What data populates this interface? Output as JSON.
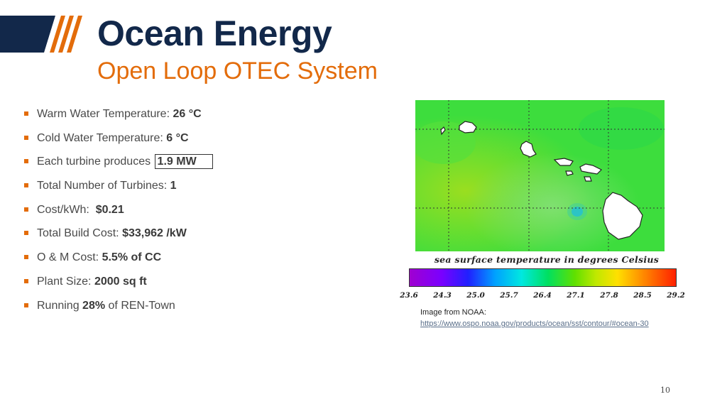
{
  "header": {
    "title": "Ocean Energy",
    "subtitle": "Open Loop OTEC System",
    "colors": {
      "navy": "#12284a",
      "orange": "#e36c0a"
    }
  },
  "bullets": [
    {
      "label": "Warm Water Temperature: ",
      "value": "26 °C"
    },
    {
      "label": "Cold Water Temperature: ",
      "value": "6 °C"
    },
    {
      "label": "Each turbine produces ",
      "value": "1.9 MW"
    },
    {
      "label": "Total Number of Turbines: ",
      "value": "1"
    },
    {
      "label": "Cost/kWh:  ",
      "value": "$0.21"
    },
    {
      "label": "Total Build Cost: ",
      "value": "$33,962 /kW"
    },
    {
      "label": "O & M Cost: ",
      "value": "5.5% of CC"
    },
    {
      "label": "Plant Size: ",
      "value": "2000 sq ft"
    },
    {
      "pre": "Running ",
      "value": "28%",
      "post": " of REN-Town"
    }
  ],
  "figure": {
    "caption": "sea surface temperature in degrees Celsius",
    "scale_ticks": [
      "23.6",
      "24.3",
      "25.0",
      "25.7",
      "26.4",
      "27.1",
      "27.8",
      "28.5",
      "29.2"
    ],
    "credit_text": "Image from NOAA:",
    "credit_link": "https://www.ospo.noaa.gov/products/ocean/sst/contour/#ocean-30"
  },
  "footer": {
    "page_number": "10"
  }
}
